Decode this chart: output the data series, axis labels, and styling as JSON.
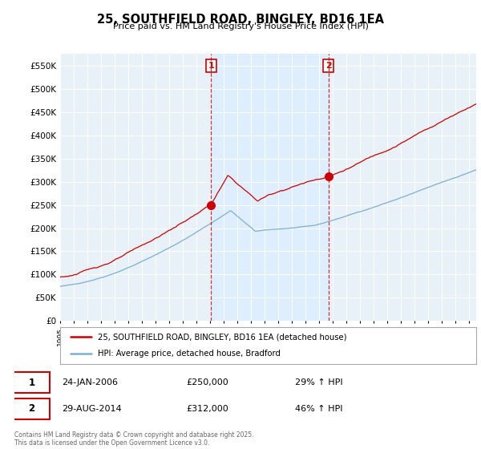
{
  "title": "25, SOUTHFIELD ROAD, BINGLEY, BD16 1EA",
  "subtitle": "Price paid vs. HM Land Registry's House Price Index (HPI)",
  "ylim": [
    0,
    575000
  ],
  "yticks": [
    0,
    50000,
    100000,
    150000,
    200000,
    250000,
    300000,
    350000,
    400000,
    450000,
    500000,
    550000
  ],
  "sale1_year": 2006.07,
  "sale1_price": 250000,
  "sale2_year": 2014.66,
  "sale2_price": 312000,
  "red_color": "#cc0000",
  "blue_color": "#7ab0d4",
  "shade_color": "#ddeeff",
  "vline_color": "#cc0000",
  "grid_color": "#cccccc",
  "background_color": "#e8f0f8",
  "legend_label_red": "25, SOUTHFIELD ROAD, BINGLEY, BD16 1EA (detached house)",
  "legend_label_blue": "HPI: Average price, detached house, Bradford",
  "footer": "Contains HM Land Registry data © Crown copyright and database right 2025.\nThis data is licensed under the Open Government Licence v3.0.",
  "table_row1": [
    "1",
    "24-JAN-2006",
    "£250,000",
    "29% ↑ HPI"
  ],
  "table_row2": [
    "2",
    "29-AUG-2014",
    "£312,000",
    "46% ↑ HPI"
  ],
  "xlim_start": 1995,
  "xlim_end": 2025.5
}
